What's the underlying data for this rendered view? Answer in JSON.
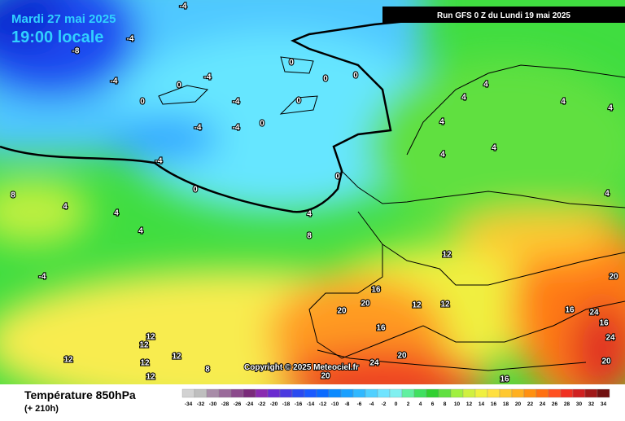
{
  "header": {
    "date": "Mardi 27 mai 2025",
    "time": "19:00 locale",
    "run": "Run GFS 0 Z du Lundi 19 mai 2025"
  },
  "footer": {
    "title": "Température 850hPa",
    "lead": "(+ 210h)",
    "copyright": "Copyright © 2025 Meteociel.fr"
  },
  "legend": {
    "labels": [
      -34,
      -32,
      -30,
      -28,
      -26,
      -24,
      -22,
      -20,
      -18,
      -16,
      -14,
      -12,
      -10,
      -8,
      -6,
      -4,
      -2,
      0,
      2,
      4,
      6,
      8,
      10,
      12,
      14,
      16,
      18,
      20,
      22,
      24,
      26,
      28,
      30,
      32,
      34
    ],
    "colors": [
      "#d2d2d2",
      "#bebebe",
      "#a88ca8",
      "#9a6a9a",
      "#8c4a8c",
      "#7a2a7a",
      "#8a2ab0",
      "#6a2ad0",
      "#4a3ae0",
      "#2a4af0",
      "#1a5aff",
      "#0a6aff",
      "#0a8aff",
      "#1aa0ff",
      "#30b8ff",
      "#50d0ff",
      "#70e4ff",
      "#80f0f0",
      "#60f0a0",
      "#40e060",
      "#30d030",
      "#60e040",
      "#a0f040",
      "#d0f040",
      "#f0f040",
      "#ffe040",
      "#ffc830",
      "#ffb020",
      "#ff9010",
      "#ff7010",
      "#ff5020",
      "#f03020",
      "#d02020",
      "#a01818",
      "#701010"
    ]
  },
  "contour_labels": [
    "-4",
    "-4",
    "-8",
    "-4",
    "0",
    "0",
    "-4",
    "-4",
    "-4",
    "-4",
    "0",
    "-4",
    "0",
    "0",
    "0",
    "0",
    "0",
    "0",
    "4",
    "4",
    "4",
    "4",
    "8",
    "8",
    "-4",
    "4",
    "4",
    "4",
    "4",
    "4",
    "4",
    "4",
    "4",
    "12",
    "16",
    "20",
    "20",
    "12",
    "12",
    "16",
    "16",
    "24",
    "16",
    "24",
    "20",
    "20",
    "24",
    "20",
    "20",
    "12",
    "12",
    "12",
    "12",
    "12",
    "12",
    "8",
    "16"
  ]
}
